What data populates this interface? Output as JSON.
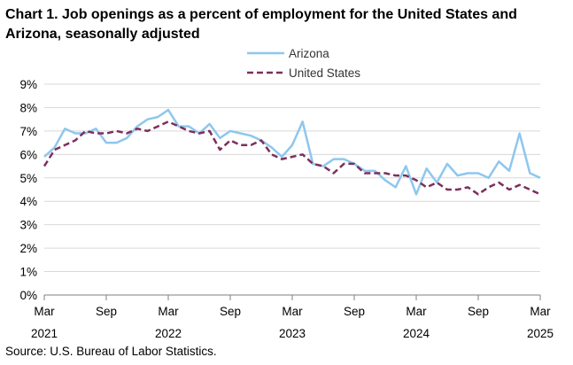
{
  "title": "Chart 1. Job openings as a percent of employment for the United States and Arizona, seasonally adjusted",
  "source": "Source: U.S. Bureau of Labor Statistics.",
  "chart_data": {
    "type": "line",
    "title": "Chart 1. Job openings as a percent of employment for the United States and Arizona, seasonally adjusted",
    "xlabel": "",
    "ylabel": "",
    "ylim": [
      0,
      9
    ],
    "y_ticks": [
      "0%",
      "1%",
      "2%",
      "3%",
      "4%",
      "5%",
      "6%",
      "7%",
      "8%",
      "9%"
    ],
    "x_ticks": [
      {
        "month": "Mar",
        "year": "2021",
        "index": 0
      },
      {
        "month": "Sep",
        "year": "",
        "index": 6
      },
      {
        "month": "Mar",
        "year": "2022",
        "index": 12
      },
      {
        "month": "Sep",
        "year": "",
        "index": 18
      },
      {
        "month": "Mar",
        "year": "2023",
        "index": 24
      },
      {
        "month": "Sep",
        "year": "",
        "index": 30
      },
      {
        "month": "Mar",
        "year": "2024",
        "index": 36
      },
      {
        "month": "Sep",
        "year": "",
        "index": 42
      },
      {
        "month": "Mar",
        "year": "2025",
        "index": 48
      }
    ],
    "x_range": [
      "Mar 2021",
      "Mar 2025"
    ],
    "grid": true,
    "legend_position": "top-right",
    "series": [
      {
        "name": "Arizona",
        "color": "#8ec7ee",
        "dash": "solid",
        "values": [
          5.9,
          6.3,
          7.1,
          6.9,
          6.9,
          7.1,
          6.5,
          6.5,
          6.7,
          7.2,
          7.5,
          7.6,
          7.9,
          7.2,
          7.2,
          6.9,
          7.3,
          6.7,
          7.0,
          6.9,
          6.8,
          6.6,
          6.3,
          5.9,
          6.4,
          7.4,
          5.6,
          5.5,
          5.8,
          5.8,
          5.6,
          5.3,
          5.3,
          4.9,
          4.6,
          5.5,
          4.3,
          5.4,
          4.8,
          5.6,
          5.1,
          5.2,
          5.2,
          5.0,
          5.7,
          5.3,
          6.9,
          5.2,
          5.0
        ]
      },
      {
        "name": "United States",
        "color": "#7d2f5c",
        "dash": "dashed",
        "values": [
          5.5,
          6.2,
          6.4,
          6.6,
          7.0,
          6.9,
          6.9,
          7.0,
          6.9,
          7.1,
          7.0,
          7.2,
          7.4,
          7.2,
          7.0,
          6.9,
          7.0,
          6.2,
          6.6,
          6.4,
          6.4,
          6.6,
          6.0,
          5.8,
          5.9,
          6.0,
          5.6,
          5.5,
          5.2,
          5.6,
          5.6,
          5.2,
          5.2,
          5.2,
          5.1,
          5.1,
          4.9,
          4.6,
          4.8,
          4.5,
          4.5,
          4.6,
          4.3,
          4.6,
          4.8,
          4.5,
          4.7,
          4.5,
          4.3
        ]
      }
    ]
  }
}
